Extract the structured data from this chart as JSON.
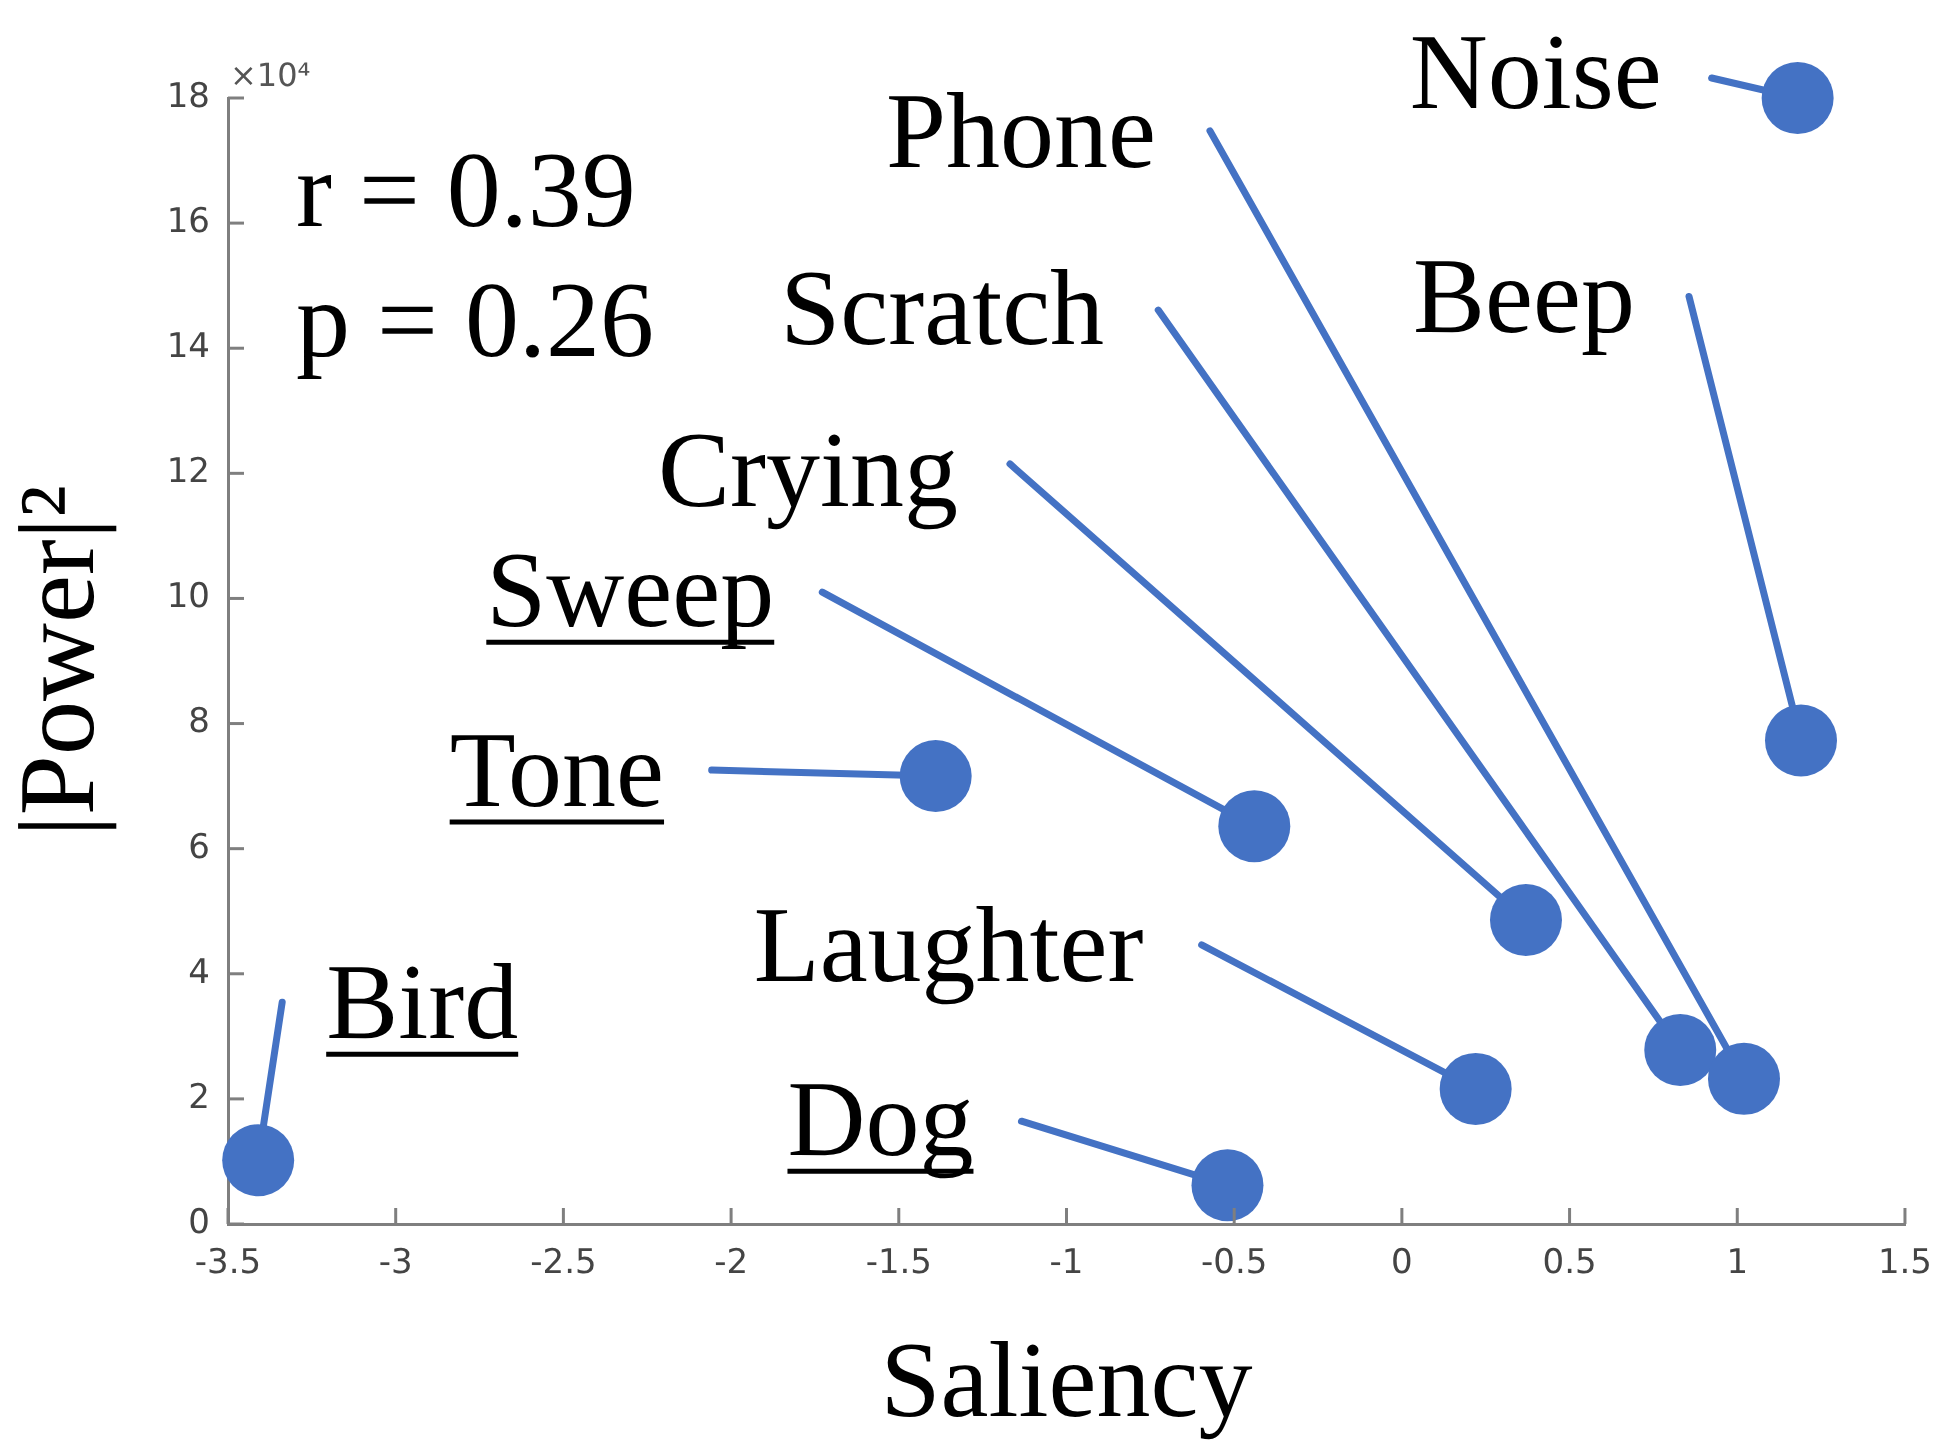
{
  "chart_data": {
    "type": "scatter",
    "xlabel": "Saliency",
    "ylabel": "|Power|²",
    "x": [
      -3.41,
      -1.39,
      -0.52,
      -0.44,
      0.22,
      0.37,
      0.83,
      1.02,
      1.18,
      1.19
    ],
    "values": [
      1.02,
      7.16,
      0.62,
      6.36,
      2.16,
      4.86,
      2.78,
      2.32,
      18,
      7.73
    ],
    "color": "#4472c4",
    "marker": "circle",
    "xlim": [
      -3.5,
      1.5
    ],
    "xticks": [
      -3.5,
      -3,
      -2.5,
      -2,
      -1.5,
      -1,
      -0.5,
      0,
      0.5,
      1,
      1.5
    ],
    "ylim": [
      0,
      18
    ],
    "yticks": [
      0,
      2,
      4,
      6,
      8,
      10,
      12,
      14,
      16,
      18
    ],
    "annotations": [
      "×10⁴",
      "r = 0.39",
      "p = 0.26",
      {
        "text": "Bird",
        "x": -3.41,
        "y": 1.02
      },
      {
        "text": "Tone",
        "x": -1.39,
        "y": 7.16
      },
      {
        "text": "Dog",
        "x": -0.52,
        "y": 0.62
      },
      {
        "text": "Sweep",
        "x": -0.44,
        "y": 6.36
      },
      {
        "text": "Laughter",
        "x": 0.22,
        "y": 2.16
      },
      {
        "text": "Crying",
        "x": 0.37,
        "y": 4.86
      },
      {
        "text": "Scratch",
        "x": 0.83,
        "y": 2.78
      },
      {
        "text": "Phone",
        "x": 1.02,
        "y": 2.32
      },
      {
        "text": "Noise",
        "x": 1.18,
        "y": 18
      },
      {
        "text": "Beep",
        "x": 1.19,
        "y": 7.73
      }
    ]
  }
}
